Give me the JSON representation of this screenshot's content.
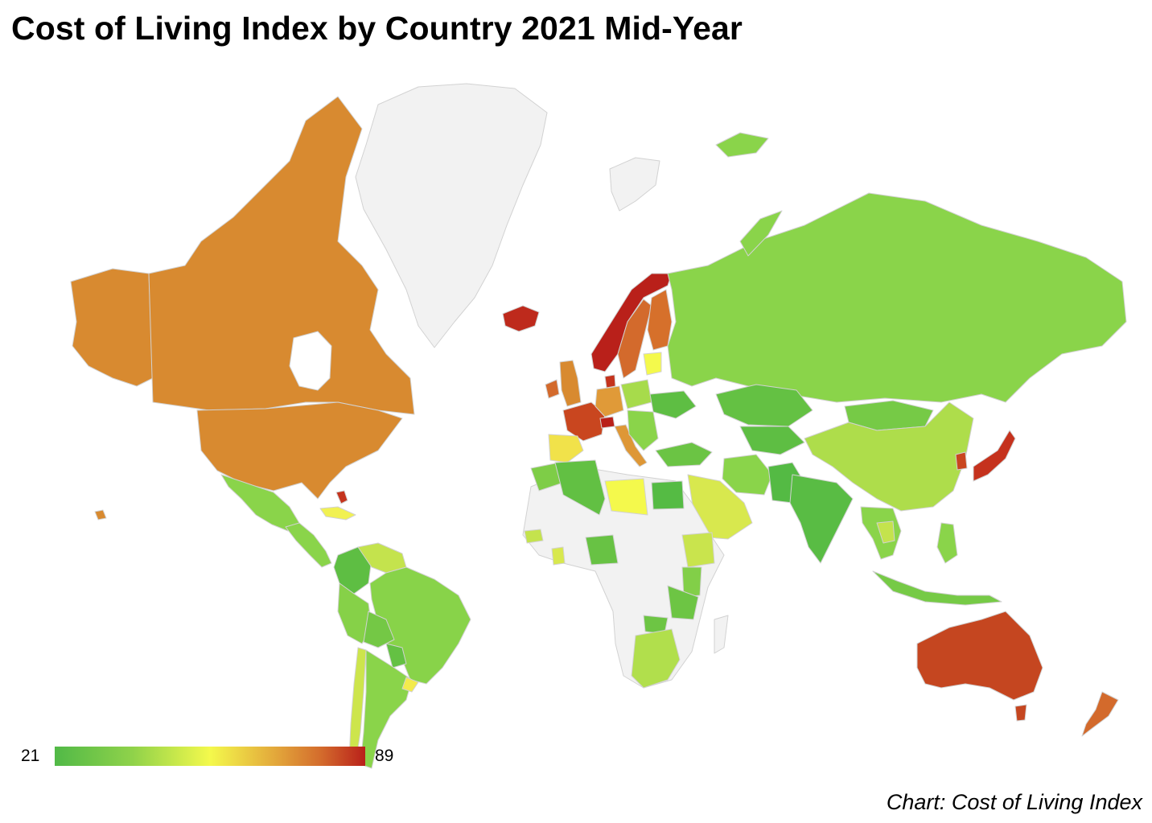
{
  "title": "Cost of Living Index by Country 2021 Mid-Year",
  "source": "Chart: Cost of Living Index",
  "legend": {
    "min": "21",
    "max": "89",
    "min_color": "#51b947",
    "max_color": "#b9201a",
    "nodata_color": "#f2f2f2"
  },
  "map_data": {
    "type": "choropleth",
    "scale_min": 21,
    "scale_max": 89,
    "regions": [
      {
        "name": "Canada",
        "value": 70,
        "color": "#d88a30"
      },
      {
        "name": "United States",
        "value": 70,
        "color": "#d88a30"
      },
      {
        "name": "Greenland",
        "value": null,
        "color": "#f2f2f2"
      },
      {
        "name": "Mexico",
        "value": 33,
        "color": "#8ad44a"
      },
      {
        "name": "Central America",
        "value": 35,
        "color": "#8ad44a"
      },
      {
        "name": "Caribbean",
        "value": 50,
        "color": "#f1f152"
      },
      {
        "name": "Colombia",
        "value": 27,
        "color": "#5ebe43"
      },
      {
        "name": "Venezuela",
        "value": 43,
        "color": "#c4e34d"
      },
      {
        "name": "Brazil",
        "value": 32,
        "color": "#88d349"
      },
      {
        "name": "Peru",
        "value": 33,
        "color": "#86d148"
      },
      {
        "name": "Bolivia",
        "value": 30,
        "color": "#74c845"
      },
      {
        "name": "Paraguay",
        "value": 29,
        "color": "#64c143"
      },
      {
        "name": "Chile",
        "value": 44,
        "color": "#cde54c"
      },
      {
        "name": "Argentina",
        "value": 34,
        "color": "#8ad44a"
      },
      {
        "name": "Uruguay",
        "value": 50,
        "color": "#f3eb4c"
      },
      {
        "name": "Iceland",
        "value": 86,
        "color": "#be2a1c"
      },
      {
        "name": "Norway",
        "value": 88,
        "color": "#b9201a"
      },
      {
        "name": "Sweden",
        "value": 74,
        "color": "#d36a2c"
      },
      {
        "name": "Finland",
        "value": 72,
        "color": "#d6702b"
      },
      {
        "name": "Denmark",
        "value": 84,
        "color": "#c4331d"
      },
      {
        "name": "United Kingdom",
        "value": 70,
        "color": "#d88a30"
      },
      {
        "name": "Ireland",
        "value": 74,
        "color": "#d36a2c"
      },
      {
        "name": "France",
        "value": 76,
        "color": "#c9461f"
      },
      {
        "name": "Spain",
        "value": 52,
        "color": "#f1e24a"
      },
      {
        "name": "Germany",
        "value": 66,
        "color": "#e09a38"
      },
      {
        "name": "Switzerland",
        "value": 123,
        "color": "#b9201a"
      },
      {
        "name": "Italy",
        "value": 67,
        "color": "#de9736"
      },
      {
        "name": "Poland",
        "value": 37,
        "color": "#a7db4b"
      },
      {
        "name": "Ukraine",
        "value": 27,
        "color": "#5ebe43"
      },
      {
        "name": "Turkey",
        "value": 29,
        "color": "#6bc444"
      },
      {
        "name": "Russia",
        "value": 33,
        "color": "#8ad44a"
      },
      {
        "name": "Kazakhstan",
        "value": 27,
        "color": "#64c143"
      },
      {
        "name": "Mongolia",
        "value": 30,
        "color": "#76ca46"
      },
      {
        "name": "China",
        "value": 41,
        "color": "#aedd4b"
      },
      {
        "name": "Japan",
        "value": 77,
        "color": "#c5321d"
      },
      {
        "name": "South Korea",
        "value": 76,
        "color": "#c9461f"
      },
      {
        "name": "India",
        "value": 24,
        "color": "#59bc44"
      },
      {
        "name": "Pakistan",
        "value": 22,
        "color": "#54ba44"
      },
      {
        "name": "Iran",
        "value": 33,
        "color": "#8ad44a"
      },
      {
        "name": "Saudi Arabia",
        "value": 46,
        "color": "#d8e84e"
      },
      {
        "name": "Egypt",
        "value": 22,
        "color": "#55bb44"
      },
      {
        "name": "Libya",
        "value": 50,
        "color": "#f4f94c"
      },
      {
        "name": "Algeria",
        "value": 27,
        "color": "#62c043"
      },
      {
        "name": "Morocco",
        "value": 31,
        "color": "#7ecd47"
      },
      {
        "name": "Nigeria",
        "value": 30,
        "color": "#68c244"
      },
      {
        "name": "Ethiopia",
        "value": 43,
        "color": "#c9e44d"
      },
      {
        "name": "Kenya",
        "value": 32,
        "color": "#82cf48"
      },
      {
        "name": "Tanzania",
        "value": 30,
        "color": "#6dc544"
      },
      {
        "name": "South Africa",
        "value": 39,
        "color": "#b1df4c"
      },
      {
        "name": "Southeast Asia",
        "value": 33,
        "color": "#8ad44a"
      },
      {
        "name": "Indonesia",
        "value": 30,
        "color": "#76ca46"
      },
      {
        "name": "Australia",
        "value": 77,
        "color": "#c54620"
      },
      {
        "name": "New Zealand",
        "value": 73,
        "color": "#d36a2c"
      },
      {
        "name": "Africa (no data)",
        "value": null,
        "color": "#f2f2f2"
      }
    ]
  }
}
